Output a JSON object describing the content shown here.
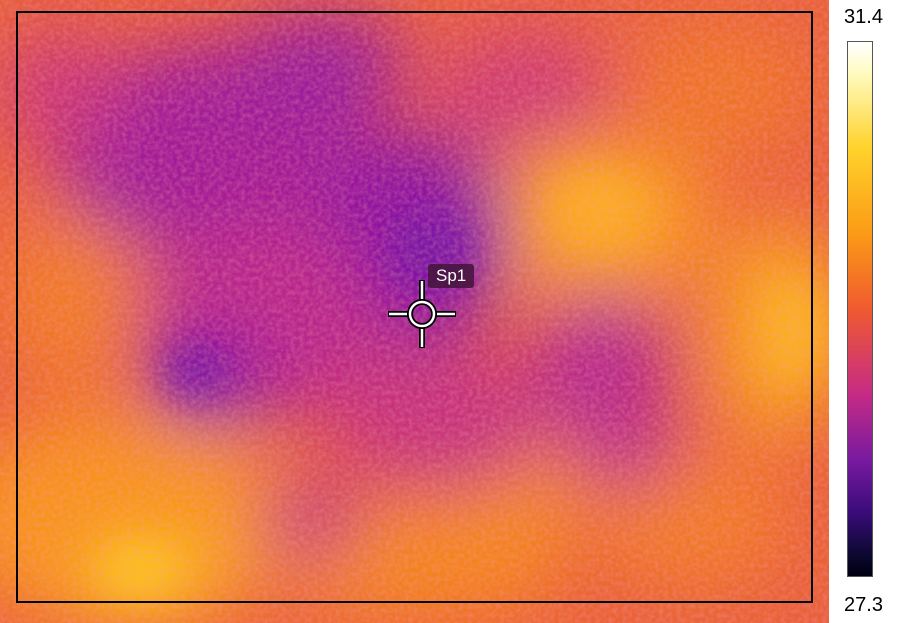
{
  "thermal_view": {
    "spot_label": "Sp1"
  },
  "temperature_scale": {
    "max": "31.4",
    "min": "27.3",
    "palette": [
      "#ffffff",
      "#ffd22a",
      "#fb9a16",
      "#f05a30",
      "#c52b84",
      "#7a1aa0",
      "#3a0c7a",
      "#000010"
    ]
  }
}
